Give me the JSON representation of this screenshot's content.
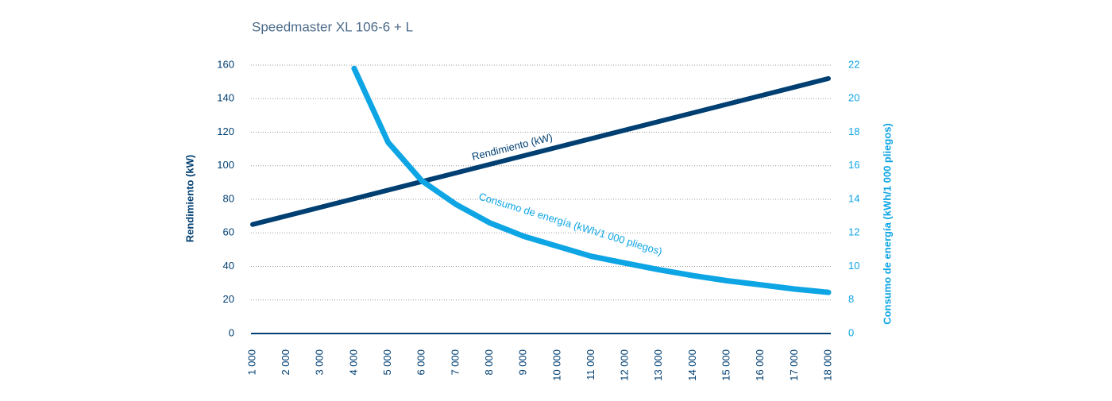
{
  "chart_data": {
    "type": "line",
    "title": "Speedmaster XL 106-6 + L",
    "y_label": "Rendimiento (kW)",
    "y2_label": "Consumo de energía (kWh/1 000 pliegos)",
    "xlim": [
      1000,
      18000
    ],
    "xticks": [
      {
        "value": 1000,
        "label": "1 000"
      },
      {
        "value": 2000,
        "label": "2 000"
      },
      {
        "value": 3000,
        "label": "3 000"
      },
      {
        "value": 4000,
        "label": "4 000"
      },
      {
        "value": 5000,
        "label": "5 000"
      },
      {
        "value": 6000,
        "label": "6 000"
      },
      {
        "value": 7000,
        "label": "7 000"
      },
      {
        "value": 8000,
        "label": "8 000"
      },
      {
        "value": 9000,
        "label": "9 000"
      },
      {
        "value": 10000,
        "label": "10 000"
      },
      {
        "value": 11000,
        "label": "11 000"
      },
      {
        "value": 12000,
        "label": "12 000"
      },
      {
        "value": 13000,
        "label": "13 000"
      },
      {
        "value": 14000,
        "label": "14 000"
      },
      {
        "value": 15000,
        "label": "15 000"
      },
      {
        "value": 16000,
        "label": "16 000"
      },
      {
        "value": 17000,
        "label": "17 000"
      },
      {
        "value": 18000,
        "label": "18 000"
      }
    ],
    "ylim": [
      0,
      160
    ],
    "yticks": [
      0,
      20,
      40,
      60,
      80,
      100,
      120,
      140,
      160
    ],
    "y2lim": [
      0,
      22
    ],
    "y2ticks": [
      0,
      8,
      10,
      12,
      14,
      16,
      18,
      20,
      22
    ],
    "grid": true,
    "series": [
      {
        "name": "Rendimiento (kW)",
        "color": "#003f72",
        "x": [
          1000,
          18000
        ],
        "values": [
          65,
          152
        ]
      },
      {
        "name": "Consumo de energía (kWh/1 000 pliegos)",
        "color": "#0ea5e4",
        "axis": "y2",
        "x": [
          4000,
          5000,
          6000,
          7000,
          8000,
          9000,
          10000,
          11000,
          12000,
          13000,
          14000,
          15000,
          16000,
          17000,
          18000
        ],
        "values": [
          21.8,
          17.4,
          15.1,
          13.7,
          12.6,
          11.8,
          11.2,
          10.6,
          10.2,
          9.8,
          9.45,
          9.15,
          8.9,
          8.65,
          8.45
        ]
      }
    ]
  }
}
